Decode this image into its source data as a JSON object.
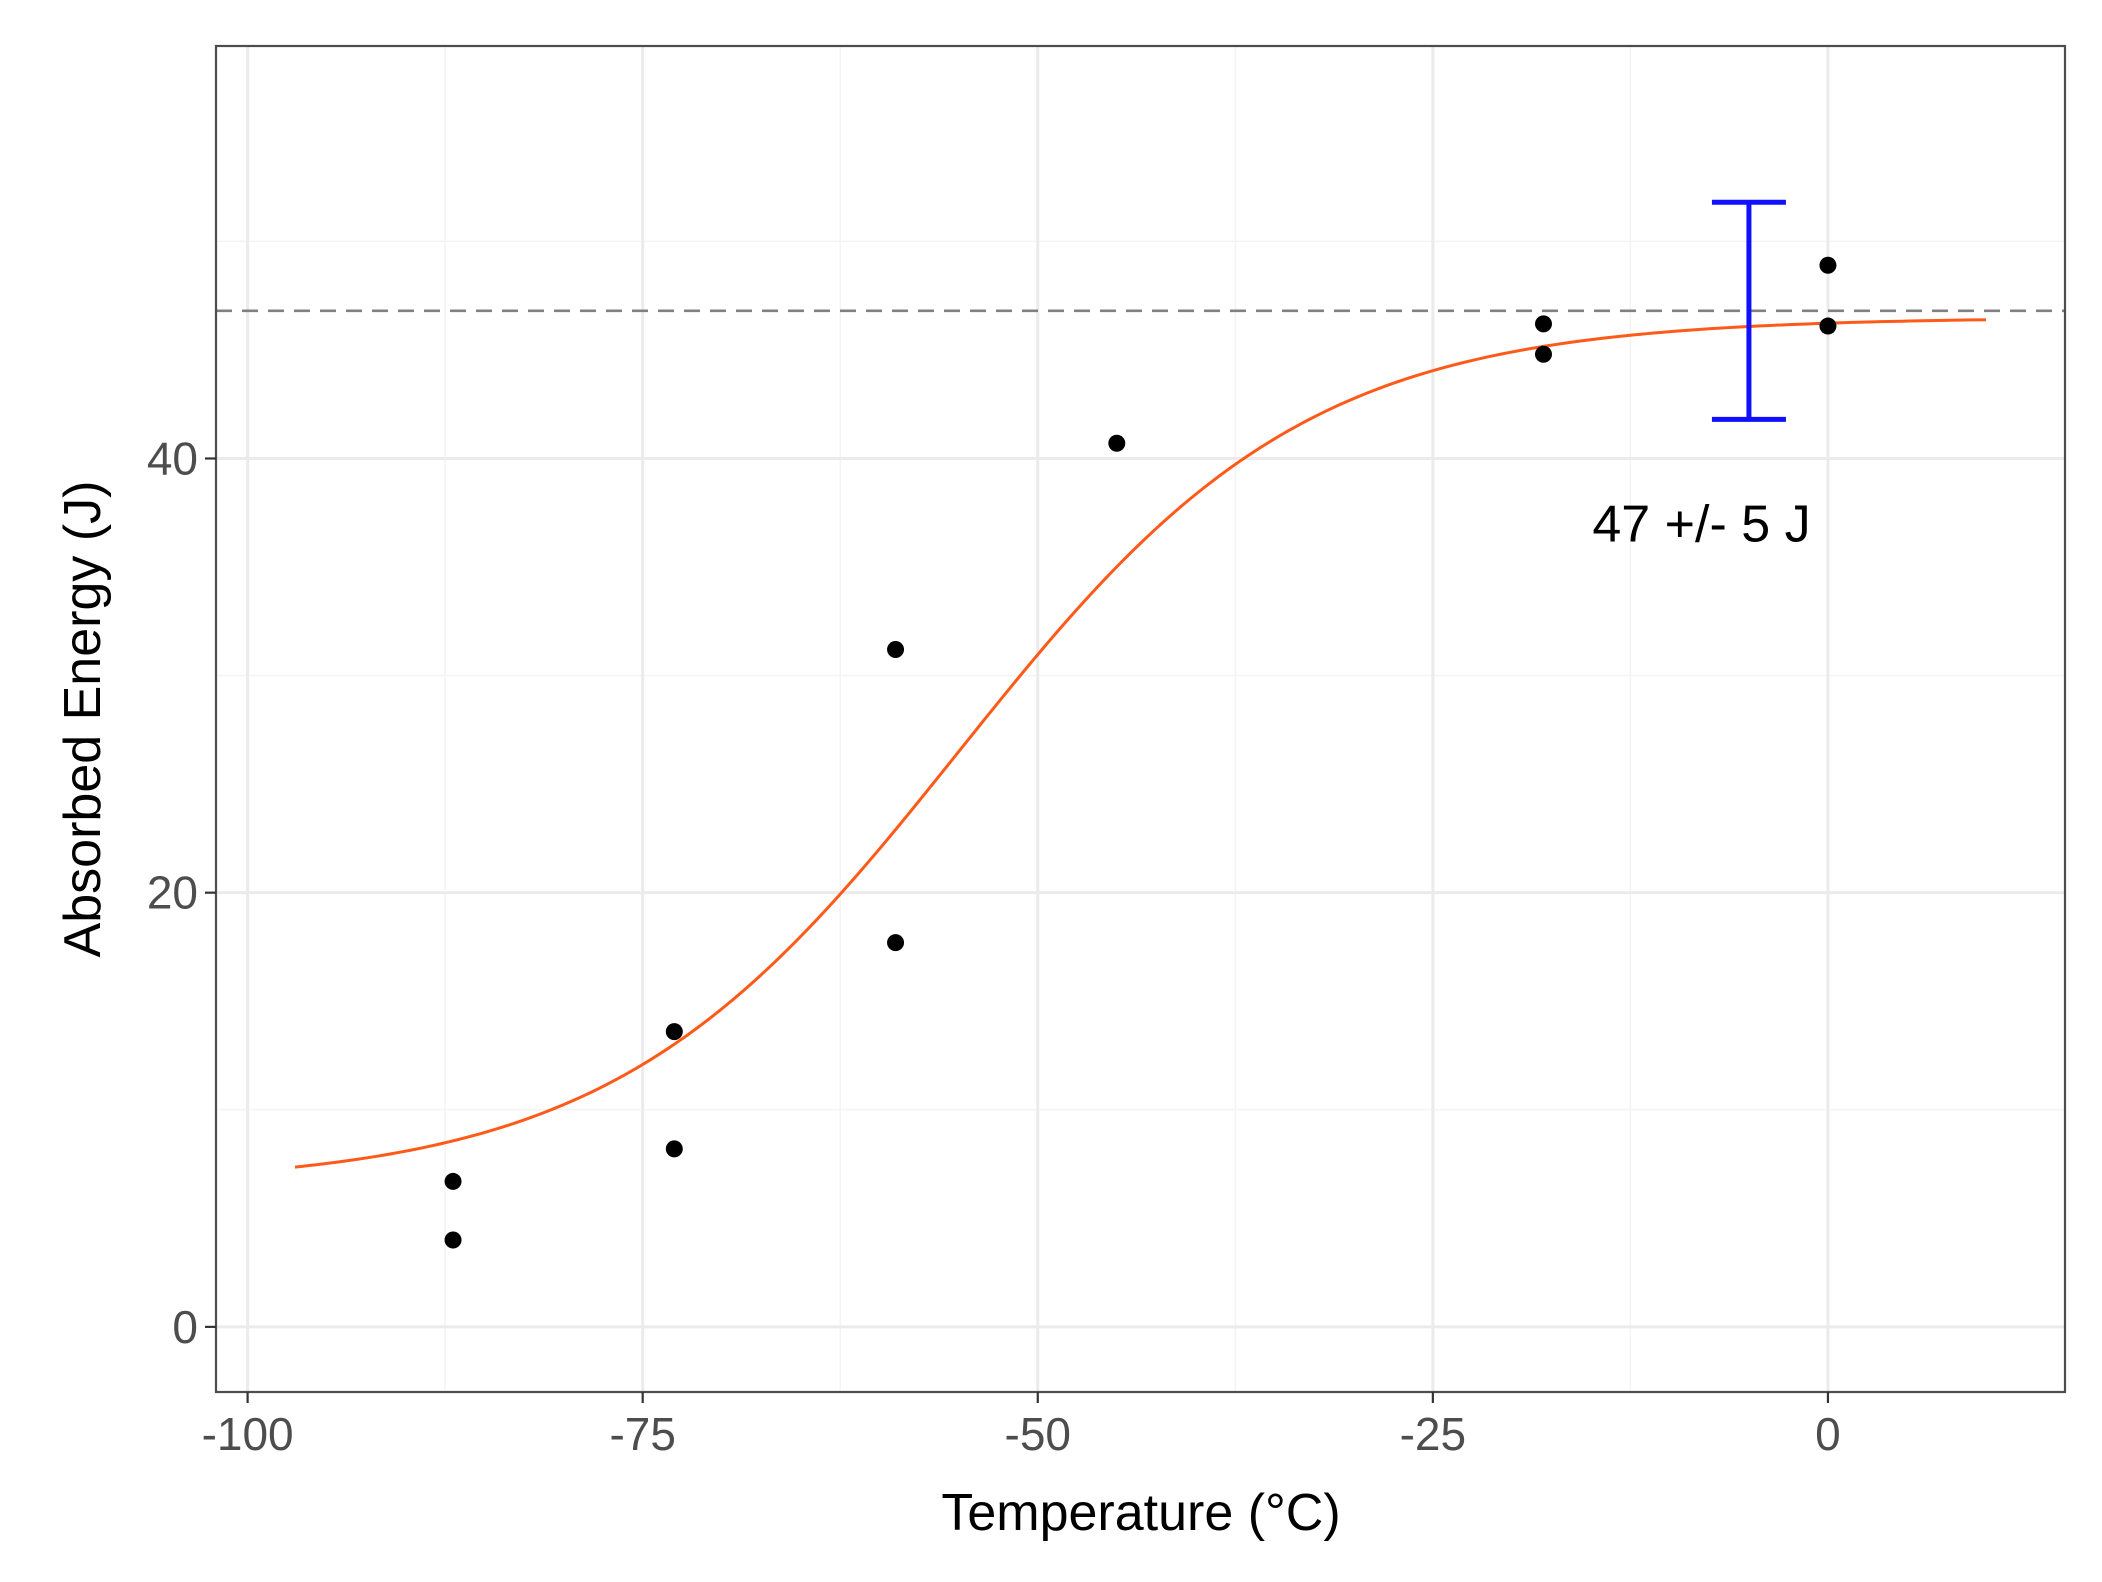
{
  "chart_data": {
    "type": "scatter",
    "title": "",
    "xlabel": "Temperature (°C)",
    "ylabel": "Absorbed Energy (J)",
    "xlim": [
      -102,
      15
    ],
    "ylim": [
      -3,
      59
    ],
    "grid": true,
    "x_ticks": [
      -100,
      -75,
      -50,
      -25,
      0
    ],
    "x_tick_labels": [
      "-100",
      "-75",
      "-50",
      "-25",
      "0"
    ],
    "y_ticks": [
      0,
      20,
      40
    ],
    "y_tick_labels": [
      "0",
      "20",
      "40"
    ],
    "points": [
      {
        "x": -87,
        "y": 6.7
      },
      {
        "x": -87,
        "y": 4.0
      },
      {
        "x": -73,
        "y": 13.6
      },
      {
        "x": -73,
        "y": 8.2
      },
      {
        "x": -59,
        "y": 31.2
      },
      {
        "x": -59,
        "y": 17.7
      },
      {
        "x": -45,
        "y": 40.7
      },
      {
        "x": -18,
        "y": 46.2
      },
      {
        "x": -18,
        "y": 44.8
      },
      {
        "x": 0,
        "y": 48.9
      },
      {
        "x": 0,
        "y": 46.1
      }
    ],
    "fit_curve": {
      "type": "tanh",
      "lower_shelf": 6.5,
      "upper_shelf": 46.5,
      "transition_temp": -55,
      "width": 22,
      "x_range": [
        -97,
        10
      ],
      "color": "#ff5a1a"
    },
    "reference_line": {
      "y": 46.8,
      "style": "dashed",
      "color": "#808080"
    },
    "error_bar": {
      "x": -5,
      "center": 46.8,
      "ymin": 41.8,
      "ymax": 51.8,
      "color": "#1010ff"
    },
    "annotations": [
      {
        "text": "47 +/- 5 J",
        "x": -8,
        "y": 37
      }
    ],
    "point_color": "#000000"
  }
}
